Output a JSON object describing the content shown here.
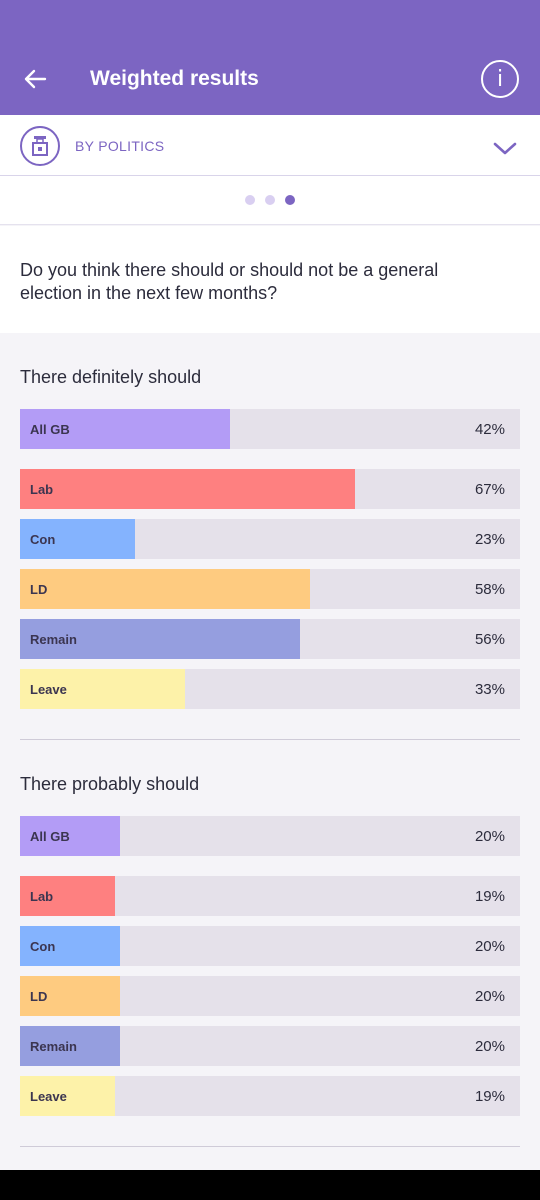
{
  "app_bar": {
    "title": "Weighted results",
    "back_icon": "arrow-left-icon",
    "info_label": "i",
    "background": "#7c65c2"
  },
  "filter": {
    "label": "BY POLITICS",
    "icon": "ballot-box-icon",
    "dropdown_icon": "chevron-down-icon"
  },
  "pager": {
    "count": 3,
    "active_index": 2
  },
  "question": "Do you think there should or should not be a general election in the next few months?",
  "sections": [
    {
      "heading": "There definitely should",
      "rows": [
        {
          "label": "All GB",
          "value": "42%",
          "pct": 42,
          "color": "#b39cf6"
        },
        {
          "label": "Lab",
          "value": "67%",
          "pct": 67,
          "color": "#fe8080"
        },
        {
          "label": "Con",
          "value": "23%",
          "pct": 23,
          "color": "#84b3fe"
        },
        {
          "label": "LD",
          "value": "58%",
          "pct": 58,
          "color": "#fecb80"
        },
        {
          "label": "Remain",
          "value": "56%",
          "pct": 56,
          "color": "#959edf"
        },
        {
          "label": "Leave",
          "value": "33%",
          "pct": 33,
          "color": "#fdf2a9"
        }
      ]
    },
    {
      "heading": "There probably should",
      "rows": [
        {
          "label": "All GB",
          "value": "20%",
          "pct": 20,
          "color": "#b39cf6"
        },
        {
          "label": "Lab",
          "value": "19%",
          "pct": 19,
          "color": "#fe8080"
        },
        {
          "label": "Con",
          "value": "20%",
          "pct": 20,
          "color": "#84b3fe"
        },
        {
          "label": "LD",
          "value": "20%",
          "pct": 20,
          "color": "#fecb80"
        },
        {
          "label": "Remain",
          "value": "20%",
          "pct": 20,
          "color": "#959edf"
        },
        {
          "label": "Leave",
          "value": "19%",
          "pct": 19,
          "color": "#fdf2a9"
        }
      ]
    }
  ]
}
